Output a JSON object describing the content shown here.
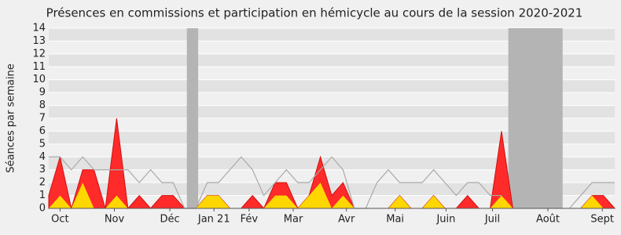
{
  "chart_data": {
    "type": "area",
    "title": "Présences en commissions et participation en hémicycle au cours de la session 2020-2021",
    "y_label": "Séances par semaine",
    "x": [
      0,
      1,
      2,
      3,
      4,
      5,
      6,
      7,
      8,
      9,
      10,
      11,
      12,
      13,
      14,
      15,
      16,
      17,
      18,
      19,
      20,
      21,
      22,
      23,
      24,
      25,
      26,
      27,
      28,
      29,
      30,
      31,
      32,
      33,
      34,
      35,
      36,
      37,
      38,
      39,
      40,
      41,
      42,
      43,
      44,
      45,
      46,
      47,
      48,
      49,
      50
    ],
    "series": [
      {
        "color": "#ff2a2a",
        "values": [
          1,
          4,
          0,
          3,
          3,
          0,
          7,
          0,
          1,
          0,
          1,
          1,
          0,
          0,
          1,
          1,
          0,
          0,
          1,
          0,
          2,
          2,
          0,
          1,
          4,
          1,
          2,
          0,
          0,
          0,
          0,
          1,
          0,
          0,
          1,
          0,
          0,
          1,
          0,
          0,
          6,
          0,
          0,
          0,
          0,
          0,
          0,
          0,
          1,
          1,
          0
        ]
      },
      {
        "color": "#ffd700",
        "values": [
          0,
          1,
          0,
          2,
          0,
          0,
          1,
          0,
          0,
          0,
          0,
          0,
          0,
          0,
          1,
          1,
          0,
          0,
          0,
          0,
          1,
          1,
          0,
          1,
          2,
          0,
          1,
          0,
          0,
          0,
          0,
          1,
          0,
          0,
          1,
          0,
          0,
          0,
          0,
          0,
          1,
          0,
          0,
          0,
          0,
          0,
          0,
          0,
          1,
          0,
          0
        ]
      },
      {
        "color": "#aaaaaa",
        "line": true,
        "values": [
          4,
          4,
          3,
          4,
          3,
          3,
          3,
          3,
          2,
          3,
          2,
          2,
          0,
          0,
          2,
          2,
          3,
          4,
          3,
          1,
          2,
          3,
          2,
          2,
          3,
          4,
          3,
          0,
          0,
          2,
          3,
          2,
          2,
          2,
          3,
          2,
          1,
          2,
          2,
          1,
          1,
          null,
          null,
          null,
          null,
          null,
          0,
          1,
          2,
          2,
          2
        ]
      }
    ],
    "shaded_ranges": [
      [
        12.2,
        13.2
      ],
      [
        40.6,
        45.4
      ]
    ],
    "xlim": [
      0,
      50
    ],
    "xticks": [
      {
        "value": 1.0,
        "label": "Oct"
      },
      {
        "value": 5.8,
        "label": "Nov"
      },
      {
        "value": 10.7,
        "label": "Déc"
      },
      {
        "value": 14.6,
        "label": "Jan 21"
      },
      {
        "value": 17.7,
        "label": "Fév"
      },
      {
        "value": 21.6,
        "label": "Mar"
      },
      {
        "value": 26.3,
        "label": "Avr"
      },
      {
        "value": 30.6,
        "label": "Mai"
      },
      {
        "value": 35.1,
        "label": "Juin"
      },
      {
        "value": 39.2,
        "label": "Juil"
      },
      {
        "value": 44.1,
        "label": "Août"
      },
      {
        "value": 48.9,
        "label": "Sept"
      }
    ],
    "ylim": [
      0,
      14
    ],
    "yticks": [
      0,
      1,
      2,
      3,
      4,
      5,
      6,
      7,
      8,
      9,
      10,
      11,
      12,
      13,
      14
    ],
    "grid": true
  }
}
